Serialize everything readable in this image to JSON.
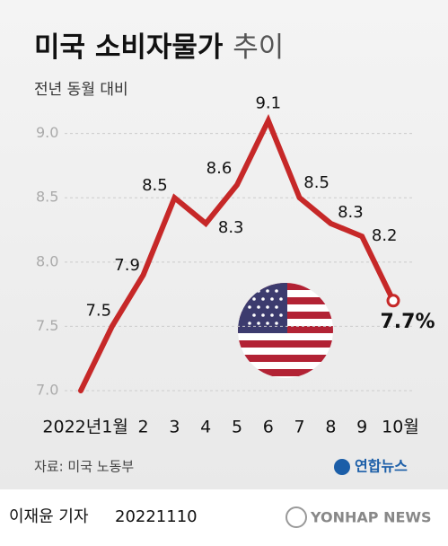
{
  "chart_data": {
    "type": "line",
    "title": "미국 소비자물가",
    "title_light": "추이",
    "subtitle": "전년 동월 대비",
    "categories": [
      null,
      "2022년1월",
      "2",
      "3",
      "4",
      "5",
      "6",
      "7",
      "8",
      "9",
      "10월"
    ],
    "series": [
      {
        "name": "미국 소비자물가",
        "color": "#c62828",
        "values": [
          7.0,
          7.5,
          7.9,
          8.5,
          8.3,
          8.6,
          9.1,
          8.5,
          8.3,
          8.2,
          7.7
        ],
        "value_labels": [
          null,
          "7.5",
          "7.9",
          "8.5",
          "8.3",
          "8.6",
          "9.1",
          "8.5",
          "8.3",
          "8.2",
          "7.7%"
        ]
      }
    ],
    "ylim": [
      7.0,
      9.2
    ],
    "yticks": [
      {
        "value": 7,
        "label": "7.0"
      },
      7.5,
      {
        "value": 8,
        "label": "8.0"
      },
      8.5,
      {
        "value": 9,
        "label": "9.0"
      }
    ],
    "grid": true,
    "source": "자료: 미국 노동부",
    "logo": "연합뉴스",
    "byline": "이재윤 기자",
    "date": "20221110",
    "watermark": "YONHAP NEWS"
  }
}
